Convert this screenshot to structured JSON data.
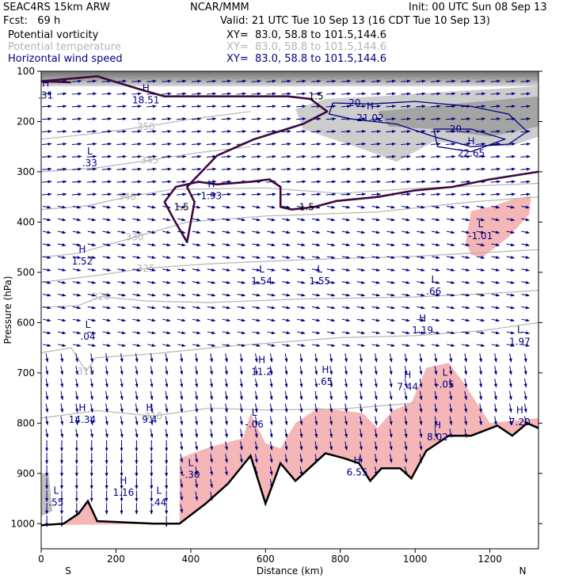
{
  "header": {
    "model": "SEAC4RS 15km ARW",
    "center": "NCAR/MMM",
    "init": "Init: 00 UTC Sun 08 Sep 13",
    "fcst": "Fcst:   69 h",
    "valid": "Valid: 21 UTC Tue 10 Sep 13 (16 CDT Tue 10 Sep 13)",
    "fields": [
      {
        "name": "Potential vorticity",
        "xy": "XY=  83.0, 58.8 to 101.5,144.6",
        "color": "#000000"
      },
      {
        "name": "Potential temperature",
        "xy": "XY=  83.0, 58.8 to 101.5,144.6",
        "color": "#b4b4b4"
      },
      {
        "name": "Horizontal wind speed",
        "xy": "XY=  83.0, 58.8 to 101.5,144.6",
        "color": "#00007f"
      }
    ]
  },
  "chart_data": {
    "type": "cross-section",
    "xlabel": "Distance (km)",
    "ylabel": "Pressure (hPa)",
    "xlim": [
      0,
      1330
    ],
    "ylim": [
      1050,
      100
    ],
    "x_ticks": [
      "0",
      "200",
      "400",
      "600",
      "800",
      "1000",
      "1200"
    ],
    "y_ticks": [
      "100",
      "200",
      "300",
      "400",
      "500",
      "600",
      "700",
      "800",
      "900",
      "1000"
    ],
    "x_end_labels": {
      "left": "S",
      "right": "N"
    },
    "theta_contours": [
      {
        "label": "350",
        "points": [
          [
            0,
            235
          ],
          [
            130,
            225
          ],
          [
            280,
            210
          ],
          [
            400,
            195
          ],
          [
            560,
            180
          ]
        ]
      },
      {
        "label": "345",
        "points": [
          [
            0,
            300
          ],
          [
            150,
            292
          ],
          [
            290,
            277
          ],
          [
            420,
            262
          ],
          [
            560,
            250
          ]
        ]
      },
      {
        "label": "340",
        "points": [
          [
            0,
            375
          ],
          [
            120,
            368
          ],
          [
            230,
            350
          ],
          [
            350,
            335
          ],
          [
            600,
            332
          ],
          [
            800,
            343
          ],
          [
            1000,
            333
          ],
          [
            1330,
            323
          ]
        ]
      },
      {
        "label": "330",
        "points": [
          [
            0,
            470
          ],
          [
            100,
            462
          ],
          [
            250,
            430
          ],
          [
            390,
            400
          ],
          [
            600,
            388
          ],
          [
            900,
            380
          ],
          [
            1150,
            360
          ],
          [
            1330,
            350
          ]
        ]
      },
      {
        "label": "325",
        "points": [
          [
            0,
            520
          ],
          [
            150,
            506
          ],
          [
            280,
            492
          ],
          [
            450,
            483
          ],
          [
            700,
            475
          ],
          [
            1000,
            468
          ],
          [
            1200,
            460
          ],
          [
            1330,
            455
          ]
        ]
      },
      {
        "label": "320",
        "points": [
          [
            0,
            570
          ],
          [
            100,
            566
          ],
          [
            160,
            548
          ],
          [
            280,
            557
          ],
          [
            450,
            560
          ],
          [
            700,
            553
          ],
          [
            1000,
            549
          ],
          [
            1200,
            542
          ],
          [
            1330,
            536
          ]
        ]
      },
      {
        "label": "315",
        "points": [
          [
            0,
            660
          ],
          [
            80,
            650
          ],
          [
            120,
            697
          ],
          [
            145,
            670
          ],
          [
            300,
            662
          ],
          [
            500,
            647
          ],
          [
            800,
            630
          ],
          [
            1000,
            626
          ],
          [
            1180,
            616
          ],
          [
            1330,
            600
          ]
        ]
      },
      {
        "label": "310",
        "points": [
          [
            0,
            790
          ],
          [
            150,
            775
          ],
          [
            300,
            786
          ],
          [
            450,
            770
          ],
          [
            600,
            774
          ],
          [
            800,
            772
          ],
          [
            1000,
            760
          ]
        ]
      }
    ],
    "pv_contours": [
      {
        "label": "1.5",
        "points": [
          [
            0,
            120
          ],
          [
            150,
            110
          ],
          [
            260,
            135
          ],
          [
            330,
            150
          ],
          [
            500,
            150
          ],
          [
            660,
            150
          ],
          [
            720,
            155
          ],
          [
            765,
            180
          ],
          [
            700,
            205
          ],
          [
            570,
            235
          ],
          [
            470,
            268
          ],
          [
            390,
            330
          ],
          [
            410,
            360
          ],
          [
            390,
            440
          ],
          [
            355,
            395
          ],
          [
            330,
            360
          ],
          [
            360,
            330
          ],
          [
            420,
            320
          ],
          [
            470,
            325
          ],
          [
            560,
            320
          ],
          [
            610,
            315
          ],
          [
            640,
            330
          ],
          [
            640,
            370
          ],
          [
            670,
            375
          ],
          [
            730,
            370
          ],
          [
            790,
            358
          ],
          [
            900,
            350
          ],
          [
            1000,
            337
          ],
          [
            1100,
            330
          ],
          [
            1200,
            315
          ],
          [
            1330,
            300
          ]
        ]
      },
      {
        "label": "1.5",
        "points": [
          [
            0,
            120
          ],
          [
            80,
            122
          ]
        ]
      }
    ],
    "wind_speed_contours": [
      {
        "label": "20",
        "points": [
          [
            780,
            163
          ],
          [
            880,
            165
          ],
          [
            1000,
            160
          ],
          [
            1150,
            170
          ],
          [
            1250,
            185
          ],
          [
            1300,
            220
          ],
          [
            1250,
            245
          ],
          [
            1150,
            250
          ],
          [
            1050,
            230
          ],
          [
            950,
            205
          ],
          [
            830,
            195
          ],
          [
            770,
            185
          ],
          [
            780,
            163
          ]
        ]
      },
      {
        "label": "20",
        "points": [
          [
            1050,
            215
          ],
          [
            1150,
            215
          ],
          [
            1240,
            235
          ],
          [
            1150,
            260
          ],
          [
            1060,
            250
          ],
          [
            1050,
            215
          ]
        ]
      }
    ],
    "extrema": [
      {
        "type": "H",
        "value": ".31",
        "x": 12,
        "p": 140
      },
      {
        "type": "H",
        "value": "18.51",
        "x": 280,
        "p": 150
      },
      {
        "type": "H",
        "value": "21.02",
        "x": 880,
        "p": 185
      },
      {
        "type": "H",
        "value": "22.65",
        "x": 1150,
        "p": 255
      },
      {
        "type": "L",
        "value": ".33",
        "x": 130,
        "p": 275
      },
      {
        "type": "H",
        "value": "1.93",
        "x": 455,
        "p": 340
      },
      {
        "type": "H",
        "value": "1.52",
        "x": 110,
        "p": 470
      },
      {
        "type": "L",
        "value": "-1.01",
        "x": 1175,
        "p": 420
      },
      {
        "type": "L",
        "value": "1.54",
        "x": 590,
        "p": 510
      },
      {
        "type": "L",
        "value": "1.55",
        "x": 745,
        "p": 510
      },
      {
        "type": "L",
        "value": ".66",
        "x": 1050,
        "p": 530
      },
      {
        "type": "L",
        "value": ".04",
        "x": 125,
        "p": 620
      },
      {
        "type": "H",
        "value": "1.19",
        "x": 1020,
        "p": 607
      },
      {
        "type": "L",
        "value": "1.97",
        "x": 1280,
        "p": 630
      },
      {
        "type": "H",
        "value": "11.2",
        "x": 590,
        "p": 690
      },
      {
        "type": "H",
        "value": ".65",
        "x": 760,
        "p": 710
      },
      {
        "type": "H",
        "value": "7.44",
        "x": 980,
        "p": 720
      },
      {
        "type": "L",
        "value": "-.05",
        "x": 1080,
        "p": 715
      },
      {
        "type": "H",
        "value": "14.34",
        "x": 110,
        "p": 785
      },
      {
        "type": "H",
        "value": "9.4",
        "x": 290,
        "p": 785
      },
      {
        "type": "L",
        "value": "-.06",
        "x": 570,
        "p": 795
      },
      {
        "type": "H",
        "value": "8.02",
        "x": 1060,
        "p": 820
      },
      {
        "type": "H",
        "value": "7.20",
        "x": 1280,
        "p": 790
      },
      {
        "type": "L",
        "value": "-.30",
        "x": 400,
        "p": 895
      },
      {
        "type": "H",
        "value": "6.55",
        "x": 845,
        "p": 890
      },
      {
        "type": "H",
        "value": "1.16",
        "x": 220,
        "p": 930
      },
      {
        "type": "L",
        "value": ".44",
        "x": 315,
        "p": 950
      },
      {
        "type": "L",
        "value": ".55",
        "x": 40,
        "p": 950
      }
    ],
    "terrain_pressure": [
      [
        0,
        1003
      ],
      [
        60,
        1000
      ],
      [
        100,
        980
      ],
      [
        125,
        955
      ],
      [
        150,
        995
      ],
      [
        300,
        1000
      ],
      [
        370,
        1000
      ],
      [
        440,
        960
      ],
      [
        500,
        920
      ],
      [
        560,
        865
      ],
      [
        600,
        960
      ],
      [
        640,
        880
      ],
      [
        680,
        915
      ],
      [
        760,
        860
      ],
      [
        810,
        870
      ],
      [
        850,
        880
      ],
      [
        880,
        915
      ],
      [
        910,
        890
      ],
      [
        960,
        890
      ],
      [
        990,
        910
      ],
      [
        1030,
        855
      ],
      [
        1090,
        825
      ],
      [
        1150,
        825
      ],
      [
        1220,
        805
      ],
      [
        1260,
        825
      ],
      [
        1300,
        800
      ],
      [
        1330,
        810
      ]
    ],
    "pink_region_high_pv": [
      [
        0,
        1003
      ],
      [
        60,
        1000
      ],
      [
        100,
        980
      ],
      [
        125,
        955
      ],
      [
        150,
        995
      ],
      [
        300,
        1000
      ],
      [
        370,
        1000
      ],
      [
        370,
        870
      ],
      [
        450,
        848
      ],
      [
        540,
        830
      ],
      [
        560,
        780
      ],
      [
        600,
        840
      ],
      [
        640,
        850
      ],
      [
        680,
        800
      ],
      [
        740,
        770
      ],
      [
        800,
        775
      ],
      [
        860,
        780
      ],
      [
        900,
        810
      ],
      [
        940,
        775
      ],
      [
        990,
        760
      ],
      [
        1030,
        690
      ],
      [
        1090,
        680
      ],
      [
        1130,
        720
      ],
      [
        1200,
        800
      ],
      [
        1330,
        790
      ],
      [
        1330,
        810
      ],
      [
        1300,
        800
      ],
      [
        1260,
        825
      ],
      [
        1220,
        805
      ],
      [
        1150,
        825
      ],
      [
        1090,
        825
      ],
      [
        1030,
        855
      ],
      [
        990,
        910
      ],
      [
        960,
        890
      ],
      [
        910,
        890
      ],
      [
        880,
        915
      ],
      [
        850,
        880
      ],
      [
        810,
        870
      ],
      [
        760,
        860
      ],
      [
        680,
        915
      ],
      [
        640,
        880
      ],
      [
        600,
        960
      ],
      [
        560,
        865
      ],
      [
        500,
        920
      ],
      [
        440,
        960
      ],
      [
        370,
        1000
      ]
    ],
    "pink_blob_upper": [
      [
        1150,
        378
      ],
      [
        1210,
        368
      ],
      [
        1260,
        355
      ],
      [
        1310,
        348
      ],
      [
        1305,
        385
      ],
      [
        1250,
        430
      ],
      [
        1180,
        470
      ],
      [
        1150,
        465
      ],
      [
        1135,
        440
      ],
      [
        1150,
        378
      ]
    ],
    "gray_shading_levels": [
      "#d0d0d0",
      "#a0a0a0",
      "#707070"
    ]
  }
}
